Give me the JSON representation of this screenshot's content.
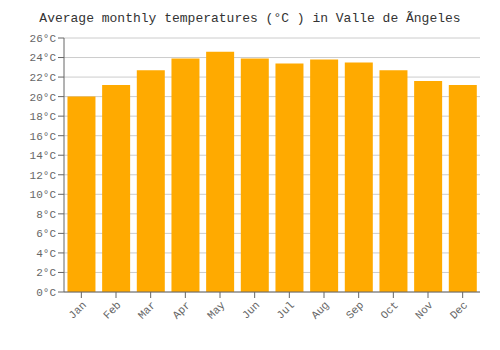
{
  "chart_data": {
    "type": "bar",
    "title": "Average monthly temperatures (°C ) in Valle de Ãngeles",
    "categories": [
      "Jan",
      "Feb",
      "Mar",
      "Apr",
      "May",
      "Jun",
      "Jul",
      "Aug",
      "Sep",
      "Oct",
      "Nov",
      "Dec"
    ],
    "values": [
      20.0,
      21.2,
      22.7,
      23.9,
      24.6,
      23.9,
      23.4,
      23.8,
      23.5,
      22.7,
      21.6,
      21.2
    ],
    "color": "#FFAA00",
    "ylim": [
      0,
      26
    ],
    "yticks": [
      {
        "value": 0,
        "label": "0°C"
      },
      {
        "value": 2,
        "label": "2°C"
      },
      {
        "value": 4,
        "label": "4°C"
      },
      {
        "value": 6,
        "label": "6°C"
      },
      {
        "value": 8,
        "label": "8°C"
      },
      {
        "value": 10,
        "label": "10°C"
      },
      {
        "value": 12,
        "label": "12°C"
      },
      {
        "value": 14,
        "label": "14°C"
      },
      {
        "value": 16,
        "label": "16°C"
      },
      {
        "value": 18,
        "label": "18°C"
      },
      {
        "value": 20,
        "label": "20°C"
      },
      {
        "value": 22,
        "label": "22°C"
      },
      {
        "value": 24,
        "label": "24°C"
      },
      {
        "value": 26,
        "label": "26°C"
      }
    ],
    "grid": true
  }
}
